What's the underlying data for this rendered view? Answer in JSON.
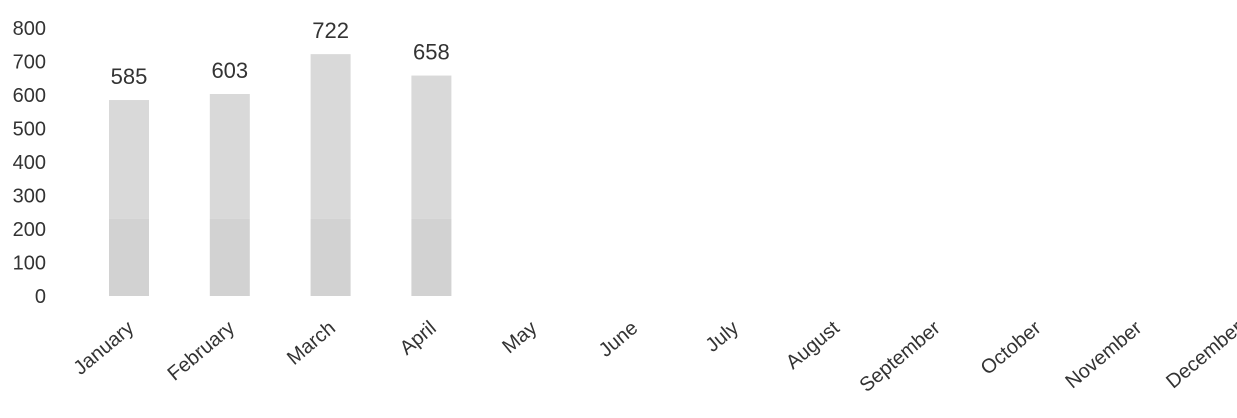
{
  "chart_data": {
    "type": "bar",
    "categories": [
      "January",
      "February",
      "March",
      "April",
      "May",
      "June",
      "July",
      "August",
      "September",
      "October",
      "November",
      "December"
    ],
    "values": [
      585,
      603,
      722,
      658,
      null,
      null,
      null,
      null,
      null,
      null,
      null,
      null
    ],
    "data_labels": [
      "585",
      "603",
      "722",
      "658",
      "",
      "",
      "",
      "",
      "",
      "",
      "",
      ""
    ],
    "title": "",
    "xlabel": "",
    "ylabel": "",
    "ylim": [
      0,
      800
    ],
    "yticks": [
      0,
      100,
      200,
      300,
      400,
      500,
      600,
      700,
      800
    ],
    "grid": false,
    "legend": "none",
    "bar_color": "#d9d9d9",
    "bar_lower_shade": "#d2d2d2"
  }
}
